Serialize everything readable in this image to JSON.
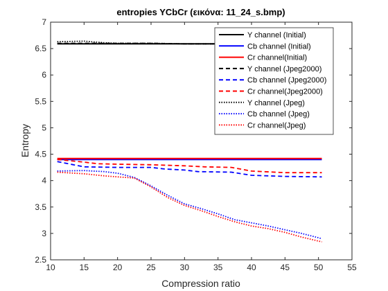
{
  "chart_data": {
    "type": "line",
    "title": "entropies YCbCr (εικόνα: 11_24_s.bmp)",
    "xlabel": "Compression ratio",
    "ylabel": "Entropy",
    "xlim": [
      10,
      55
    ],
    "ylim": [
      2.5,
      7
    ],
    "xticks": [
      10,
      15,
      20,
      25,
      30,
      35,
      40,
      45,
      50,
      55
    ],
    "yticks": [
      2.5,
      3,
      3.5,
      4,
      4.5,
      5,
      5.5,
      6,
      6.5,
      7
    ],
    "grid": false,
    "legend_position": "top-right",
    "series": [
      {
        "name": "Y channel (Initial)",
        "color": "#000000",
        "style": "solid",
        "x": [
          11,
          50.5
        ],
        "y": [
          6.59,
          6.59
        ]
      },
      {
        "name": "Cb channel (Initial)",
        "color": "#0000ff",
        "style": "solid",
        "x": [
          11,
          50.5
        ],
        "y": [
          4.4,
          4.4
        ]
      },
      {
        "name": "Cr channel(Initial)",
        "color": "#ff0000",
        "style": "solid",
        "x": [
          11,
          50.5
        ],
        "y": [
          4.42,
          4.42
        ]
      },
      {
        "name": "Y channel (Jpeg2000)",
        "color": "#000000",
        "style": "dashed",
        "x": [
          11,
          15,
          20,
          25,
          30,
          35,
          40,
          45,
          50.5
        ],
        "y": [
          6.6,
          6.6,
          6.6,
          6.6,
          6.59,
          6.59,
          6.59,
          6.59,
          6.59
        ]
      },
      {
        "name": "Cb channel (Jpeg2000)",
        "color": "#0000ff",
        "style": "dashed",
        "x": [
          11,
          15,
          20,
          25,
          27,
          30,
          32,
          37,
          40,
          45,
          50.5
        ],
        "y": [
          4.36,
          4.26,
          4.25,
          4.25,
          4.22,
          4.2,
          4.17,
          4.16,
          4.1,
          4.08,
          4.07
        ]
      },
      {
        "name": "Cr channel(Jpeg2000)",
        "color": "#ff0000",
        "style": "dashed",
        "x": [
          11,
          15,
          17,
          20,
          25,
          30,
          33,
          37,
          40,
          45,
          50.5
        ],
        "y": [
          4.4,
          4.35,
          4.32,
          4.31,
          4.3,
          4.28,
          4.26,
          4.25,
          4.18,
          4.15,
          4.15
        ]
      },
      {
        "name": "Y channel (Jpeg)",
        "color": "#000000",
        "style": "dotted",
        "x": [
          11,
          15,
          18,
          20,
          25,
          30,
          35,
          40,
          45,
          50.5
        ],
        "y": [
          6.63,
          6.64,
          6.61,
          6.6,
          6.6,
          6.59,
          6.59,
          6.58,
          6.58,
          6.58
        ]
      },
      {
        "name": "Cb channel (Jpeg)",
        "color": "#0000ff",
        "style": "dotted",
        "x": [
          11,
          15,
          18,
          20,
          22.5,
          25,
          27.5,
          30,
          32.5,
          35,
          37.5,
          40,
          42.5,
          45,
          47.5,
          50.5
        ],
        "y": [
          4.18,
          4.19,
          4.17,
          4.14,
          4.06,
          3.9,
          3.72,
          3.56,
          3.47,
          3.37,
          3.26,
          3.2,
          3.14,
          3.07,
          3.0,
          2.9
        ]
      },
      {
        "name": "Cr channel(Jpeg)",
        "color": "#ff0000",
        "style": "dotted",
        "x": [
          11,
          15,
          18,
          20,
          22.5,
          25,
          27.5,
          30,
          32.5,
          35,
          37.5,
          40,
          42.5,
          45,
          47.5,
          50.5
        ],
        "y": [
          4.16,
          4.13,
          4.09,
          4.07,
          4.05,
          3.88,
          3.68,
          3.53,
          3.43,
          3.32,
          3.22,
          3.14,
          3.09,
          3.02,
          2.93,
          2.84
        ]
      }
    ]
  }
}
